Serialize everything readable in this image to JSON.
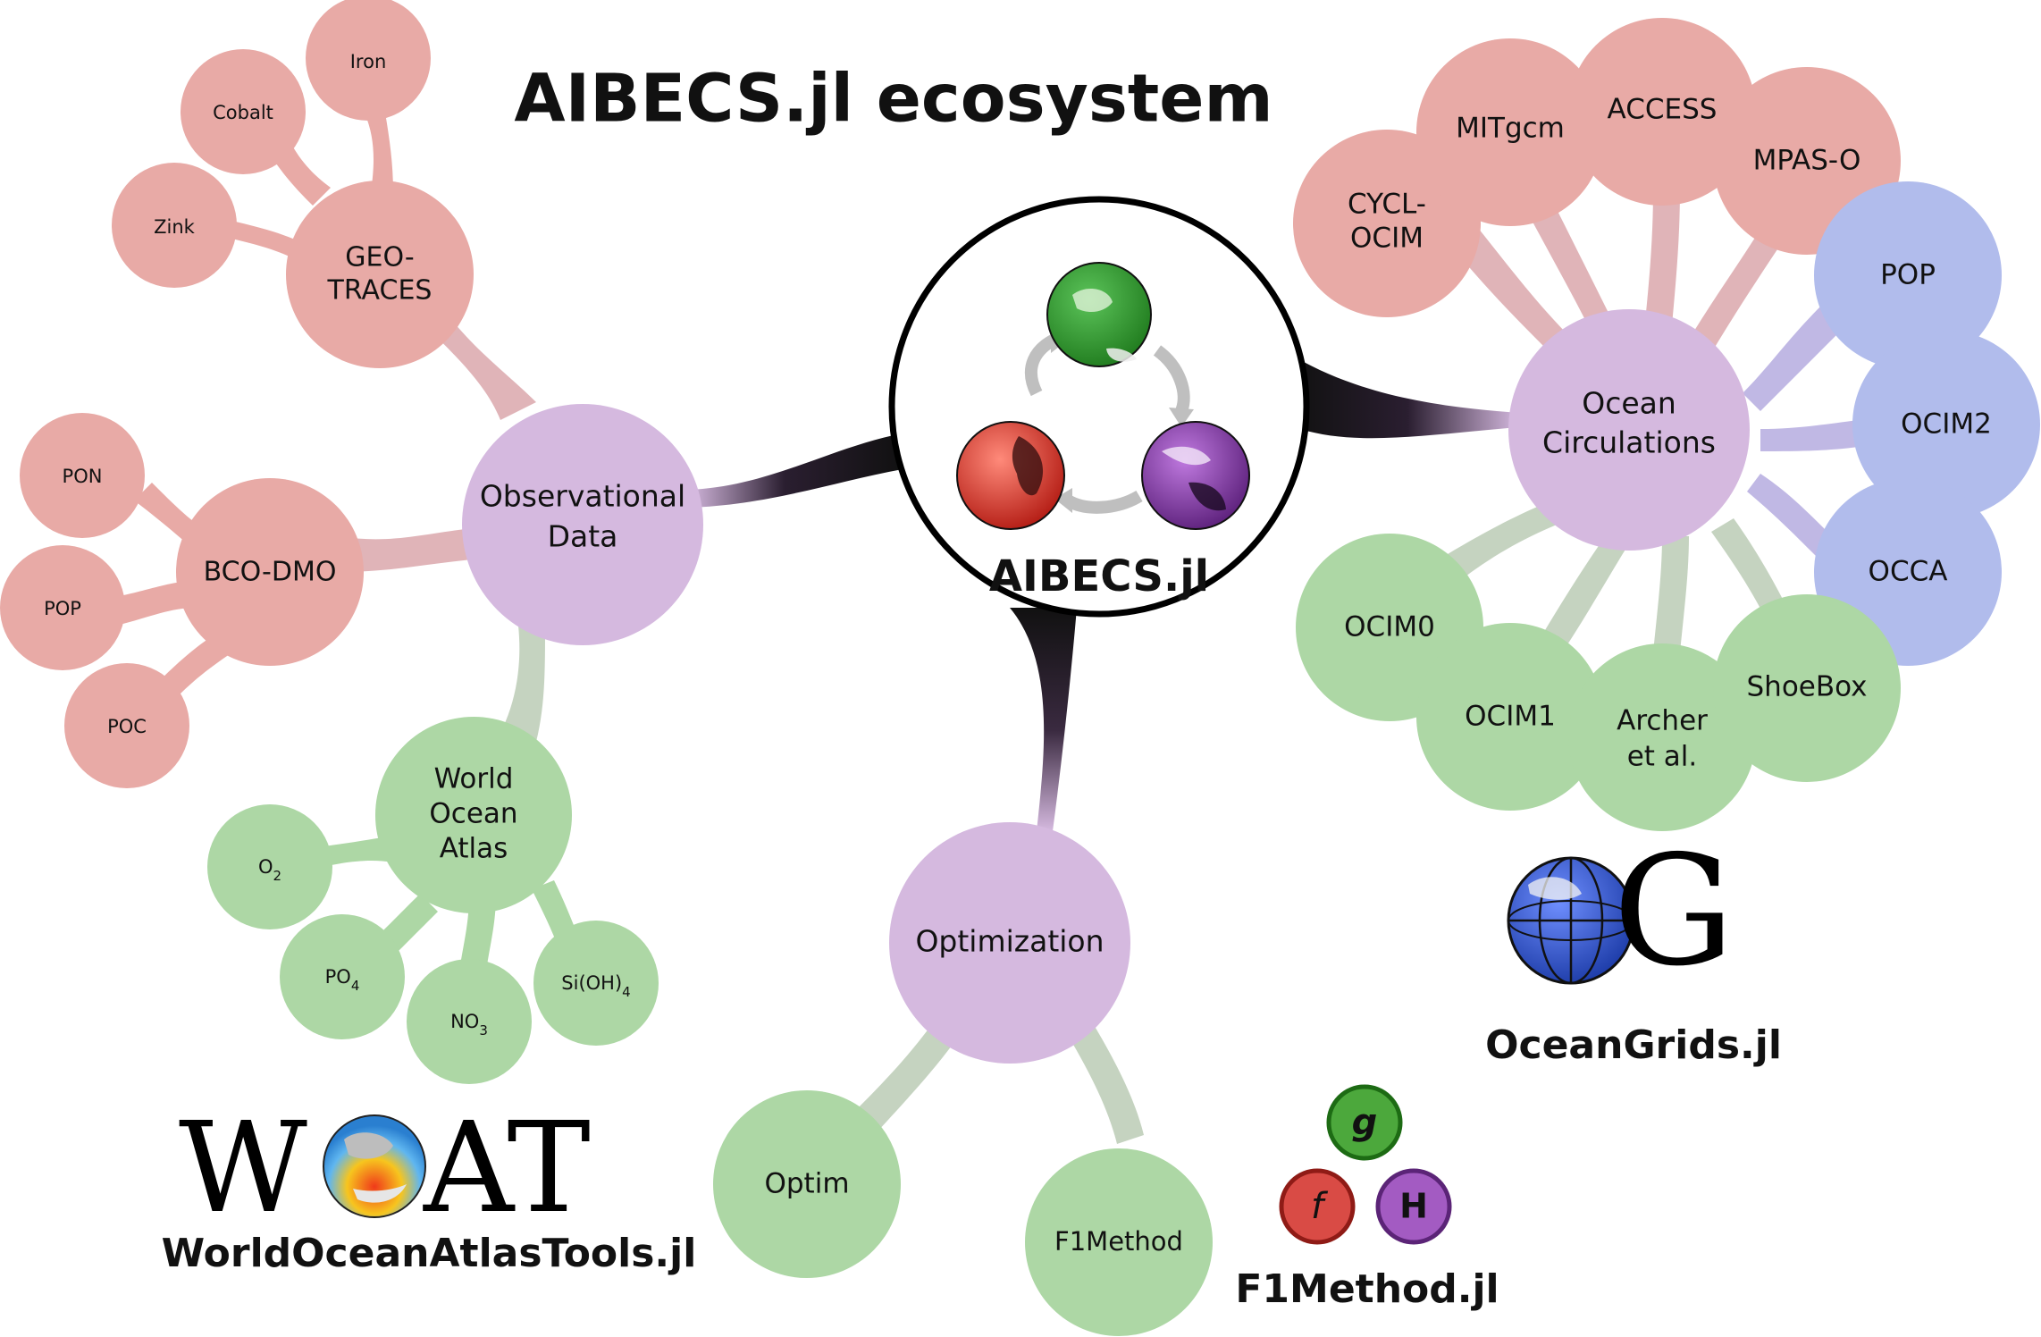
{
  "title": "AIBECS.jl ecosystem",
  "colors": {
    "purple": "#d5b9df",
    "red": "#e8aaa6",
    "green": "#add7a5",
    "blue": "#b1bcec",
    "hub_ring": "#000000"
  },
  "hub": {
    "label": "AIBECS.jl",
    "globes": [
      "green-globe-icon",
      "red-globe-icon",
      "purple-globe-icon"
    ]
  },
  "nodes": {
    "observational_data": [
      "Observational",
      "Data"
    ],
    "geotraces": [
      "GEO-",
      "TRACES"
    ],
    "iron": "Iron",
    "cobalt": "Cobalt",
    "zink": "Zink",
    "bcodmo": "BCO-DMO",
    "pon": "PON",
    "pop_obs": "POP",
    "poc": "POC",
    "woa": [
      "World",
      "Ocean",
      "Atlas"
    ],
    "o2": {
      "base": "O",
      "sub": "2"
    },
    "po4": {
      "base": "PO",
      "sub": "4"
    },
    "no3": {
      "base": "NO",
      "sub": "3"
    },
    "sioh4": {
      "base": "Si(OH)",
      "sub": "4"
    },
    "ocean_circulations": [
      "Ocean",
      "Circulations"
    ],
    "cycl_ocim": [
      "CYCL-",
      "OCIM"
    ],
    "mitgcm": "MITgcm",
    "access": "ACCESS",
    "mpas_o": "MPAS-O",
    "pop": "POP",
    "ocim2": "OCIM2",
    "occa": "OCCA",
    "ocim0": "OCIM0",
    "ocim1": "OCIM1",
    "archer": [
      "Archer",
      "et al."
    ],
    "shoebox": "ShoeBox",
    "optimization": "Optimization",
    "optim": "Optim",
    "f1method": "F1Method"
  },
  "logos": {
    "woat": {
      "letters": [
        "W",
        "AT"
      ],
      "caption": "WorldOceanAtlasTools.jl",
      "icon": "globe-icon"
    },
    "oceangrids": {
      "letter": "G",
      "caption": "OceanGrids.jl",
      "icon": "grid-globe-icon"
    },
    "f1method": {
      "caption": "F1Method.jl",
      "balls": [
        "g",
        "f",
        "H"
      ]
    }
  }
}
